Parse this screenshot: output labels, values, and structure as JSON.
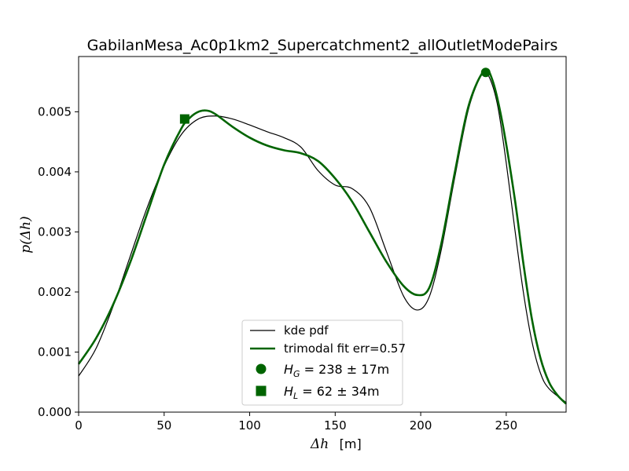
{
  "chart_data": {
    "type": "line",
    "title": "GabilanMesa_Ac0p1km2_Supercatchment2_allOutletModePairs",
    "xlabel_symbol": "Δh",
    "xlabel_unit": "[m]",
    "ylabel": "p(Δh)",
    "xlim": [
      0,
      285
    ],
    "ylim": [
      0,
      0.00592
    ],
    "x_ticks": [
      0,
      50,
      100,
      150,
      200,
      250
    ],
    "x_tick_labels": [
      "0",
      "50",
      "100",
      "150",
      "200",
      "250"
    ],
    "y_ticks": [
      0,
      0.001,
      0.002,
      0.003,
      0.004,
      0.005
    ],
    "y_tick_labels": [
      "0.000",
      "0.001",
      "0.002",
      "0.003",
      "0.004",
      "0.005"
    ],
    "series": [
      {
        "name": "kde pdf",
        "color": "#000000",
        "points": [
          [
            0,
            0.0006
          ],
          [
            10,
            0.00105
          ],
          [
            20,
            0.00175
          ],
          [
            30,
            0.00258
          ],
          [
            40,
            0.0034
          ],
          [
            50,
            0.0041
          ],
          [
            60,
            0.00462
          ],
          [
            70,
            0.00488
          ],
          [
            80,
            0.00493
          ],
          [
            90,
            0.00488
          ],
          [
            100,
            0.00478
          ],
          [
            110,
            0.00467
          ],
          [
            120,
            0.00457
          ],
          [
            130,
            0.00441
          ],
          [
            140,
            0.00402
          ],
          [
            150,
            0.00378
          ],
          [
            160,
            0.00372
          ],
          [
            170,
            0.00341
          ],
          [
            180,
            0.00267
          ],
          [
            190,
            0.00193
          ],
          [
            198,
            0.0017
          ],
          [
            205,
            0.00192
          ],
          [
            212,
            0.0027
          ],
          [
            220,
            0.00392
          ],
          [
            228,
            0.00505
          ],
          [
            236,
            0.00564
          ],
          [
            240,
            0.00558
          ],
          [
            245,
            0.0051
          ],
          [
            250,
            0.00415
          ],
          [
            255,
            0.00305
          ],
          [
            260,
            0.002
          ],
          [
            265,
            0.00118
          ],
          [
            270,
            0.00065
          ],
          [
            275,
            0.00039
          ],
          [
            285,
            0.00016
          ]
        ]
      },
      {
        "name": "trimodal fit err=0.57",
        "color": "#006400",
        "points": [
          [
            0,
            0.0008
          ],
          [
            10,
            0.00122
          ],
          [
            20,
            0.00178
          ],
          [
            30,
            0.00248
          ],
          [
            40,
            0.0033
          ],
          [
            50,
            0.00412
          ],
          [
            60,
            0.00472
          ],
          [
            65,
            0.0049
          ],
          [
            70,
            0.005
          ],
          [
            75,
            0.00502
          ],
          [
            80,
            0.00496
          ],
          [
            90,
            0.00475
          ],
          [
            100,
            0.00457
          ],
          [
            110,
            0.00444
          ],
          [
            120,
            0.00436
          ],
          [
            130,
            0.00431
          ],
          [
            140,
            0.00418
          ],
          [
            150,
            0.00389
          ],
          [
            160,
            0.0035
          ],
          [
            170,
            0.003
          ],
          [
            180,
            0.0025
          ],
          [
            190,
            0.0021
          ],
          [
            198,
            0.00195
          ],
          [
            205,
            0.00207
          ],
          [
            212,
            0.0028
          ],
          [
            220,
            0.004
          ],
          [
            228,
            0.0051
          ],
          [
            237,
            0.00568
          ],
          [
            242,
            0.00552
          ],
          [
            248,
            0.00478
          ],
          [
            255,
            0.00355
          ],
          [
            260,
            0.00248
          ],
          [
            265,
            0.00155
          ],
          [
            270,
            0.0009
          ],
          [
            275,
            0.0005
          ],
          [
            280,
            0.00028
          ],
          [
            285,
            0.00014
          ]
        ]
      }
    ],
    "markers": [
      {
        "name": "H_G",
        "shape": "circle",
        "x": 238,
        "y": 0.005655,
        "color": "#006400"
      },
      {
        "name": "H_L",
        "shape": "square",
        "x": 62,
        "y": 0.00488,
        "color": "#006400"
      }
    ],
    "legend": {
      "placement": "lower-center",
      "entries": [
        {
          "label": "kde pdf",
          "kind": "line",
          "color": "#000000",
          "width": 1.2
        },
        {
          "label": "trimodal fit err=0.57",
          "kind": "line",
          "color": "#006400",
          "width": 2.6
        },
        {
          "label_sym": "H",
          "label_sub": "G",
          "label_rest": " = 238 ± 17m",
          "kind": "circle",
          "color": "#006400"
        },
        {
          "label_sym": "H",
          "label_sub": "L",
          "label_rest": " = 62 ± 34m",
          "kind": "square",
          "color": "#006400"
        }
      ]
    }
  }
}
